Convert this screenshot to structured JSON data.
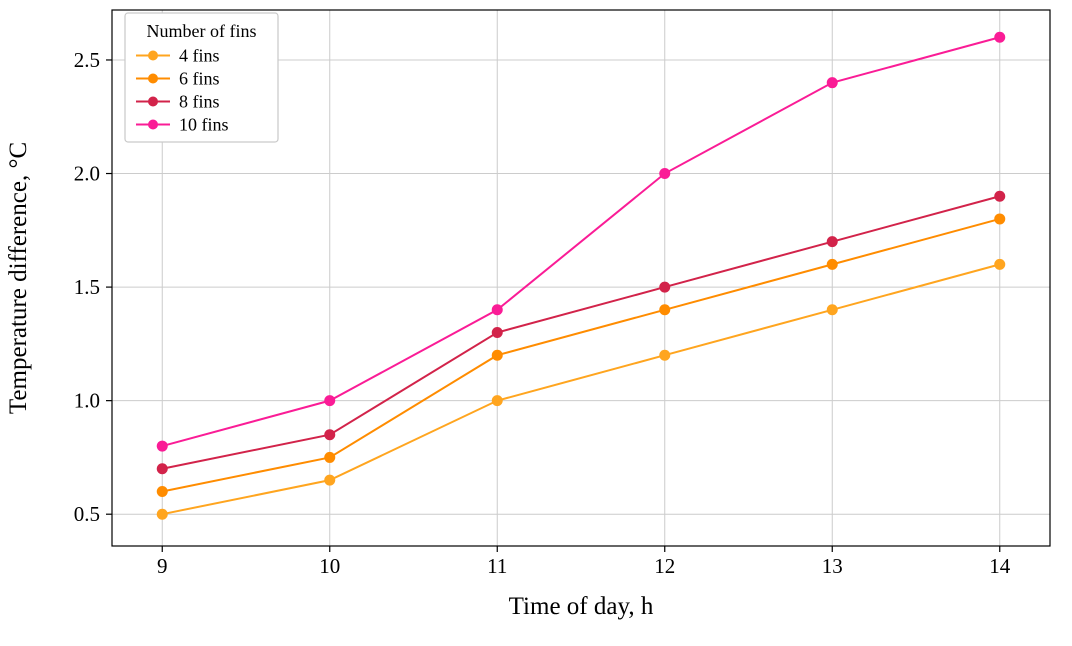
{
  "chart_data": {
    "type": "line",
    "title": "",
    "xlabel": "Time of day, h",
    "ylabel": "Temperature difference, °C",
    "x": [
      9,
      10,
      11,
      12,
      13,
      14
    ],
    "x_tick_labels": [
      "9",
      "10",
      "11",
      "12",
      "13",
      "14"
    ],
    "y_ticks": [
      0.5,
      1.0,
      1.5,
      2.0,
      2.5
    ],
    "y_tick_labels": [
      "0.5",
      "1.0",
      "1.5",
      "2.0",
      "2.5"
    ],
    "xlim": [
      8.7,
      14.3
    ],
    "ylim": [
      0.36,
      2.72
    ],
    "grid": true,
    "legend": {
      "title": "Number of fins",
      "position": "upper left",
      "labels": [
        "4 fins",
        "6 fins",
        "8 fins",
        "10 fins"
      ]
    },
    "series": [
      {
        "name": "4 fins",
        "color": "#FFA51F",
        "values": [
          0.5,
          0.65,
          1.0,
          1.2,
          1.4,
          1.6
        ]
      },
      {
        "name": "6 fins",
        "color": "#FF8C00",
        "values": [
          0.6,
          0.75,
          1.2,
          1.4,
          1.6,
          1.8
        ]
      },
      {
        "name": "8 fins",
        "color": "#D2234A",
        "values": [
          0.7,
          0.85,
          1.3,
          1.5,
          1.7,
          1.9
        ]
      },
      {
        "name": "10 fins",
        "color": "#FA1C96",
        "values": [
          0.8,
          1.0,
          1.4,
          2.0,
          2.4,
          2.6
        ]
      }
    ],
    "colors": {
      "grid": "#cccccc",
      "axis": "#000000",
      "background": "#ffffff",
      "legend_border": "#c9c9c9"
    }
  }
}
